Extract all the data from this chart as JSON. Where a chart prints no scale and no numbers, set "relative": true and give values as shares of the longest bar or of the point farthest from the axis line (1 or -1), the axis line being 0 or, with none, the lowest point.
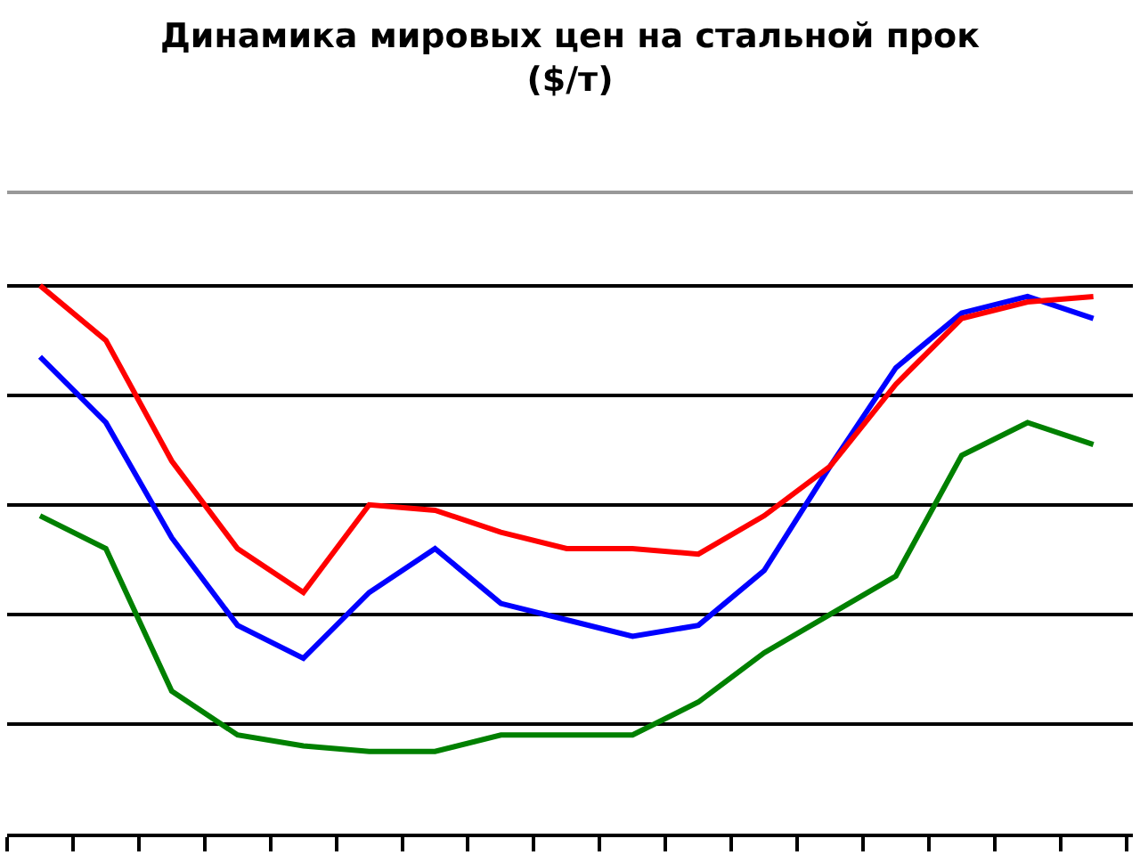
{
  "chart_data": {
    "type": "line",
    "title": "Динамика мировых цен на стальной прок\n($/т)",
    "relative": true,
    "grid": "y",
    "categories": [
      null,
      null,
      null,
      null,
      null,
      null,
      null,
      null,
      null,
      null,
      null,
      null,
      null,
      null,
      null,
      null,
      null
    ],
    "series": [
      {
        "color": "#0000ff",
        "values": [
          0.87,
          0.75,
          0.54,
          0.38,
          0.32,
          0.44,
          0.52,
          0.42,
          0.39,
          0.36,
          0.38,
          0.48,
          0.67,
          0.85,
          0.95,
          0.98,
          0.94
        ]
      },
      {
        "color": "#ff0000",
        "values": [
          1,
          0.9,
          0.68,
          0.52,
          0.44,
          0.6,
          0.59,
          0.55,
          0.52,
          0.52,
          0.51,
          0.58,
          0.67,
          0.82,
          0.94,
          0.97,
          0.98
        ]
      },
      {
        "color": "#008000",
        "values": [
          0.58,
          0.52,
          0.26,
          0.18,
          0.16,
          0.15,
          0.15,
          0.18,
          0.18,
          0.18,
          0.24,
          0.33,
          0.4,
          0.47,
          0.69,
          0.75,
          0.71
        ]
      }
    ]
  }
}
